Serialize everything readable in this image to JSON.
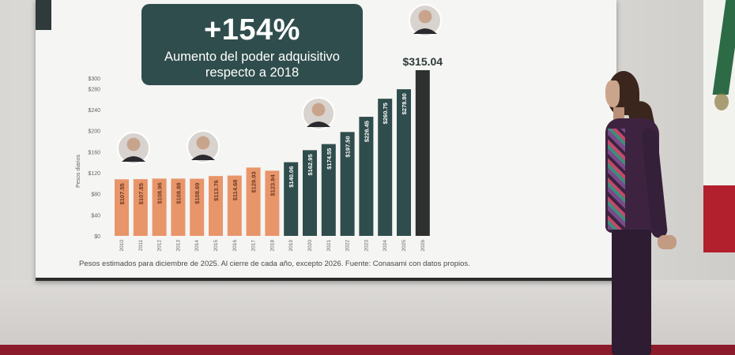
{
  "headline": {
    "big": "+154%",
    "line1": "Aumento del poder adquisitivo",
    "line2": "respecto a 2018"
  },
  "footnote": "Pesos estimados para diciembre de 2025. Al cierre de cada año, excepto 2026. Fuente: Conasami con datos propios.",
  "colors": {
    "bar_before": "#e8956a",
    "bar_after": "#2f4d4c",
    "bar_final": "#2e2f2f",
    "headline_bg": "#2f4d4c"
  },
  "chart_data": {
    "type": "bar",
    "ylabel": "Pesos diarios",
    "ylim": [
      0,
      300
    ],
    "yticks": [
      "$0",
      "$40",
      "$80",
      "$120",
      "$160",
      "$200",
      "$240",
      "$280",
      "$300"
    ],
    "ytick_values": [
      0,
      40,
      80,
      120,
      160,
      200,
      240,
      280,
      300
    ],
    "categories": [
      "2010",
      "2011",
      "2012",
      "2013",
      "2014",
      "2015",
      "2016",
      "2017",
      "2018",
      "2019",
      "2020",
      "2021",
      "2022",
      "2023",
      "2024",
      "2025",
      "2026"
    ],
    "values": [
      107.55,
      107.85,
      108.96,
      108.88,
      108.69,
      113.76,
      114.68,
      129.93,
      123.94,
      140.06,
      162.95,
      174.55,
      197.5,
      226.45,
      260.75,
      278.8,
      315.04
    ],
    "labels": [
      "$107.55",
      "$107.85",
      "$108.96",
      "$108.88",
      "$108.69",
      "$113.76",
      "$114.68",
      "$129.93",
      "$123.94",
      "$140.06",
      "$162.95",
      "$174.55",
      "$197.50",
      "$226.45",
      "$260.75",
      "$278.80",
      ""
    ],
    "top_label": "$315.04",
    "grid": false
  }
}
